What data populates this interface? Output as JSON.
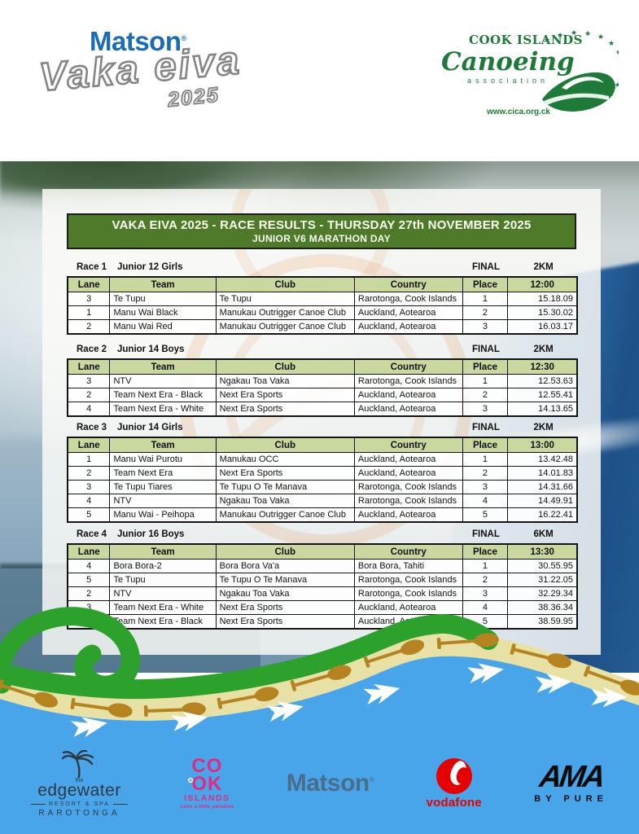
{
  "header": {
    "vaka_logo": {
      "matson": "Matson",
      "reg": "®",
      "title": "Vaka eiva",
      "year": "2025"
    },
    "cica_logo": {
      "org_line1": "COOK ISLANDS",
      "org_line2": "Canoeing",
      "org_line3": "association",
      "website": "www.cica.org.ck"
    }
  },
  "banner": {
    "title": "VAKA EIVA 2025 - RACE RESULTS - THURSDAY 27th NOVEMBER 2025",
    "subtitle": "JUNIOR V6 MARATHON DAY"
  },
  "table_columns": [
    "Lane",
    "Team",
    "Club",
    "Country",
    "Place"
  ],
  "races": [
    {
      "race_label": "Race 1",
      "category": "Junior 12 Girls",
      "round": "FINAL",
      "distance": "2KM",
      "start_time": "12:00",
      "rows": [
        [
          "3",
          "Te Tupu",
          "Te Tupu",
          "Rarotonga, Cook Islands",
          "1",
          "15.18.09"
        ],
        [
          "1",
          "Manu Wai Black",
          "Manukau Outrigger Canoe Club",
          "Auckland, Aotearoa",
          "2",
          "15.30.02"
        ],
        [
          "2",
          "Manu Wai Red",
          "Manukau Outrigger Canoe Club",
          "Auckland, Aotearoa",
          "3",
          "16.03.17"
        ]
      ]
    },
    {
      "race_label": "Race 2",
      "category": "Junior 14 Boys",
      "round": "FINAL",
      "distance": "2KM",
      "start_time": "12:30",
      "rows": [
        [
          "3",
          "NTV",
          "Ngakau Toa Vaka",
          "Rarotonga, Cook Islands",
          "1",
          "12.53.63"
        ],
        [
          "2",
          "Team Next Era - Black",
          "Next Era Sports",
          "Auckland, Aotearoa",
          "2",
          "12.55.41"
        ],
        [
          "4",
          "Team Next Era - White",
          "Next Era Sports",
          "Auckland, Aotearoa",
          "3",
          "14.13.65"
        ]
      ]
    },
    {
      "race_label": "Race 3",
      "category": "Junior 14 Girls",
      "round": "FINAL",
      "distance": "2KM",
      "start_time": "13:00",
      "rows": [
        [
          "1",
          "Manu Wai Purotu",
          "Manukau OCC",
          "Auckland, Aotearoa",
          "1",
          "13.42.48"
        ],
        [
          "2",
          "Team Next Era",
          "Next Era Sports",
          "Auckland, Aotearoa",
          "2",
          "14.01.83"
        ],
        [
          "3",
          "Te Tupu Tiares",
          "Te Tupu O Te Manava",
          "Rarotonga, Cook Islands",
          "3",
          "14.31.66"
        ],
        [
          "4",
          "NTV",
          "Ngakau Toa Vaka",
          "Rarotonga, Cook Islands",
          "4",
          "14.49.91"
        ],
        [
          "5",
          "Manu Wai - Peihopa",
          "Manukau Outrigger Canoe Club",
          "Auckland, Aotearoa",
          "5",
          "16.22.41"
        ]
      ]
    },
    {
      "race_label": "Race 4",
      "category": "Junior 16 Boys",
      "round": "FINAL",
      "distance": "6KM",
      "start_time": "13:30",
      "rows": [
        [
          "4",
          "Bora Bora-2",
          "Bora Bora Va'a",
          "Bora Bora, Tahiti",
          "1",
          "30.55.95"
        ],
        [
          "5",
          "Te Tupu",
          "Te Tupu O Te Manava",
          "Rarotonga, Cook Islands",
          "2",
          "31.22.05"
        ],
        [
          "2",
          "NTV",
          "Ngakau Toa Vaka",
          "Rarotonga, Cook Islands",
          "3",
          "32.29.34"
        ],
        [
          "3",
          "Team Next Era - White",
          "Next Era Sports",
          "Auckland, Aotearoa",
          "4",
          "38.36.34"
        ],
        [
          "1",
          "Team Next Era - Black",
          "Next Era Sports",
          "Auckland, Aotearoa",
          "5",
          "38.59.95"
        ]
      ]
    }
  ],
  "sponsors": {
    "edgewater": {
      "prefix": "the",
      "name": "edgewater",
      "subtitle": "RESORT & SPA",
      "location": "RAROTONGA"
    },
    "cook_islands": {
      "line1": "CO",
      "line2": "OK",
      "line3": "ISLANDS",
      "tagline": "Love a little paradise"
    },
    "matson": {
      "name": "Matson",
      "reg": "®"
    },
    "vodafone": {
      "name": "vodafone"
    },
    "ama": {
      "name": "AMA",
      "subtitle": "BY PURE"
    }
  },
  "colors": {
    "banner_green": "#4e7a29",
    "table_header_green": "#c9d89e",
    "wave_green": "#2ca12c",
    "sand_band": "#e7e1a5",
    "paddle_brown": "#b5831f",
    "ocean_blue": "#49a5e9",
    "matson_blue": "#1b6cb5",
    "matson_bottom_blue": "#4a6d8c",
    "cica_green": "#1d7a38",
    "cook_pink": "#e02a84",
    "vodafone_red": "#e60000"
  }
}
